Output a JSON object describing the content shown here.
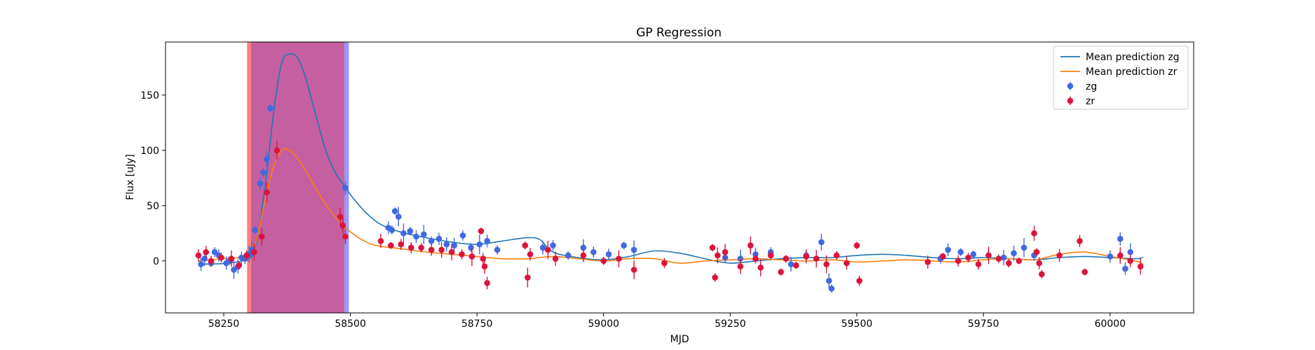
{
  "chart_data": {
    "type": "scatter",
    "title": "GP Regression",
    "xlabel": "MJD",
    "ylabel": "Flux [uJy]",
    "xlim": [
      58135,
      60165
    ],
    "ylim": [
      -47,
      198
    ],
    "xticks": [
      58250,
      58500,
      58750,
      59000,
      59250,
      59500,
      59750,
      60000
    ],
    "yticks": [
      0,
      50,
      100,
      150
    ],
    "grid": false,
    "legend_position": "top-right",
    "colors": {
      "zg_line": "#1f77b4",
      "zr_line": "#ff7f0e",
      "zg_points": "#4169e1",
      "zr_points": "#dc143c",
      "span_zr": "#ff8080",
      "span_zg": "#9999ff",
      "span_overlap": "#c4609f"
    },
    "spans": [
      {
        "band": "zr",
        "x0": 58296,
        "x1": 58488
      },
      {
        "band": "zg",
        "x0": 58304,
        "x1": 58497
      }
    ],
    "legend": [
      {
        "label": "Mean prediction zg",
        "kind": "line",
        "band": "zg"
      },
      {
        "label": "Mean prediction zr",
        "kind": "line",
        "band": "zr"
      },
      {
        "label": "zg",
        "kind": "point",
        "band": "zg"
      },
      {
        "label": "zr",
        "kind": "point",
        "band": "zr"
      }
    ],
    "series": [
      {
        "name": "Mean prediction zg",
        "kind": "line",
        "band": "zg",
        "x": [
          58200,
          58260,
          58300,
          58310,
          58320,
          58335,
          58350,
          58365,
          58380,
          58395,
          58410,
          58430,
          58450,
          58470,
          58490,
          58500,
          58530,
          58560,
          58600,
          58650,
          58700,
          58750,
          58800,
          58850,
          58875,
          58900,
          58950,
          59000,
          59050,
          59100,
          59150,
          59200,
          59250,
          59300,
          59350,
          59400,
          59450,
          59500,
          59550,
          59600,
          59650,
          59700,
          59750,
          59800,
          59850,
          59900,
          59950,
          60000,
          60050,
          60065
        ],
        "y": [
          -3,
          -2,
          2,
          10,
          30,
          80,
          140,
          180,
          187,
          184,
          168,
          135,
          102,
          80,
          67,
          60,
          44,
          33,
          26,
          21,
          17,
          15,
          18,
          21,
          19,
          8,
          3,
          1,
          4,
          9,
          7,
          2,
          -2,
          0,
          2,
          3,
          3,
          5,
          6,
          5,
          3,
          2,
          3,
          2,
          1,
          3,
          4,
          3,
          2,
          3
        ]
      },
      {
        "name": "Mean prediction zr",
        "kind": "line",
        "band": "zr",
        "x": [
          58200,
          58250,
          58280,
          58300,
          58310,
          58320,
          58335,
          58350,
          58365,
          58375,
          58390,
          58410,
          58430,
          58450,
          58470,
          58490,
          58520,
          58550,
          58600,
          58650,
          58700,
          58750,
          58800,
          58850,
          58900,
          58950,
          59000,
          59050,
          59100,
          59150,
          59200,
          59250,
          59300,
          59350,
          59400,
          59450,
          59500,
          59550,
          59600,
          59650,
          59700,
          59750,
          59800,
          59850,
          59900,
          59950,
          60000,
          60050,
          60065
        ],
        "y": [
          0,
          2,
          3,
          5,
          12,
          30,
          62,
          88,
          100,
          101,
          96,
          83,
          67,
          52,
          40,
          30,
          20,
          14,
          11,
          8,
          6,
          4,
          2,
          2,
          4,
          2,
          0,
          2,
          2,
          -2,
          0,
          1,
          2,
          1,
          0,
          1,
          -1,
          0,
          1,
          0,
          -1,
          1,
          2,
          1,
          6,
          8,
          4,
          0,
          -3
        ]
      },
      {
        "name": "zg",
        "kind": "points",
        "band": "zg",
        "x": [
          58205,
          58212,
          58225,
          58232,
          58240,
          58255,
          58262,
          58270,
          58278,
          58285,
          58292,
          58300,
          58305,
          58312,
          58322,
          58328,
          58335,
          58342,
          58490,
          58575,
          58582,
          58588,
          58595,
          58605,
          58618,
          58630,
          58645,
          58660,
          58675,
          58690,
          58705,
          58722,
          58738,
          58755,
          58770,
          58790,
          58880,
          58900,
          58930,
          58960,
          58980,
          59010,
          59040,
          59060,
          59240,
          59270,
          59300,
          59330,
          59370,
          59400,
          59430,
          59445,
          59450,
          59665,
          59680,
          59705,
          59730,
          59760,
          59790,
          59810,
          59830,
          59850,
          60000,
          60020,
          60030,
          60040
        ],
        "y": [
          -3,
          2,
          -2,
          8,
          5,
          -2,
          0,
          -8,
          -5,
          3,
          2,
          6,
          10,
          28,
          70,
          80,
          92,
          138,
          66,
          30,
          28,
          45,
          40,
          25,
          27,
          22,
          24,
          18,
          20,
          15,
          14,
          23,
          12,
          15,
          18,
          10,
          12,
          14,
          5,
          12,
          8,
          6,
          14,
          10,
          3,
          2,
          6,
          8,
          -3,
          5,
          17,
          -18,
          -25,
          2,
          10,
          8,
          6,
          5,
          3,
          7,
          12,
          5,
          4,
          20,
          -7,
          8
        ]
      },
      {
        "name": "zr",
        "kind": "points",
        "band": "zr",
        "x": [
          58200,
          58215,
          58225,
          58245,
          58265,
          58280,
          58295,
          58310,
          58325,
          58335,
          58355,
          58480,
          58485,
          58490,
          58560,
          58580,
          58600,
          58620,
          58640,
          58660,
          58680,
          58700,
          58720,
          58740,
          58758,
          58762,
          58765,
          58770,
          58845,
          58850,
          58855,
          58890,
          58905,
          58960,
          59000,
          59030,
          59060,
          59120,
          59215,
          59220,
          59225,
          59240,
          59270,
          59290,
          59300,
          59310,
          59330,
          59350,
          59360,
          59380,
          59400,
          59420,
          59440,
          59460,
          59480,
          59500,
          59505,
          59640,
          59670,
          59700,
          59720,
          59740,
          59760,
          59780,
          59800,
          59820,
          59850,
          59855,
          59860,
          59865,
          59900,
          59940,
          59950,
          60020,
          60040,
          60060
        ],
        "y": [
          5,
          8,
          0,
          3,
          2,
          -4,
          5,
          8,
          22,
          62,
          100,
          40,
          32,
          22,
          18,
          14,
          15,
          12,
          12,
          10,
          10,
          8,
          6,
          4,
          27,
          2,
          -5,
          -20,
          14,
          -15,
          6,
          10,
          2,
          5,
          0,
          2,
          -8,
          -2,
          12,
          -15,
          5,
          8,
          -5,
          14,
          2,
          -6,
          5,
          -10,
          2,
          -4,
          4,
          2,
          -3,
          5,
          -2,
          14,
          -18,
          -1,
          4,
          0,
          3,
          -3,
          5,
          2,
          -2,
          0,
          25,
          8,
          -2,
          -12,
          5,
          18,
          -10,
          5,
          0,
          -5
        ]
      }
    ]
  }
}
